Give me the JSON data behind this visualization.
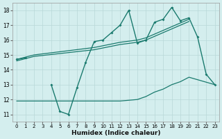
{
  "xlabel": "Humidex (Indice chaleur)",
  "background_color": "#d4eeee",
  "line_color": "#1a7a6e",
  "xlim": [
    -0.5,
    23.5
  ],
  "ylim": [
    10.5,
    18.5
  ],
  "xticks": [
    0,
    1,
    2,
    3,
    4,
    5,
    6,
    7,
    8,
    9,
    10,
    11,
    12,
    13,
    14,
    15,
    16,
    17,
    18,
    19,
    20,
    21,
    22,
    23
  ],
  "yticks": [
    11,
    12,
    13,
    14,
    15,
    16,
    17,
    18
  ],
  "grid_color": "#b8d8d8",
  "main_x": [
    0,
    1,
    2,
    3,
    4,
    5,
    6,
    7,
    8,
    9,
    10,
    11,
    12,
    13,
    14,
    15,
    16,
    17,
    18,
    19,
    20,
    21,
    22,
    23
  ],
  "main_y": [
    14.7,
    14.8,
    null,
    null,
    13.0,
    11.2,
    11.0,
    12.8,
    14.5,
    15.9,
    16.0,
    16.5,
    17.0,
    18.0,
    15.8,
    16.0,
    17.2,
    17.4,
    18.2,
    17.3,
    17.5,
    16.2,
    13.7,
    13.0
  ],
  "upper_trend_x": [
    0,
    2,
    9,
    12,
    14,
    15,
    16,
    17,
    18,
    19,
    20
  ],
  "upper_trend_y": [
    14.7,
    15.0,
    15.5,
    15.85,
    16.0,
    16.15,
    16.4,
    16.65,
    16.9,
    17.15,
    17.4
  ],
  "lower_trend_x": [
    0,
    2,
    9,
    12,
    14,
    15,
    16,
    17,
    18,
    19,
    20
  ],
  "lower_trend_y": [
    14.6,
    14.9,
    15.35,
    15.7,
    15.85,
    16.0,
    16.25,
    16.5,
    16.75,
    17.0,
    17.25
  ],
  "bottom_line_x": [
    0,
    2,
    9,
    12,
    14,
    15,
    16,
    17,
    18,
    19,
    20,
    23
  ],
  "bottom_line_y": [
    11.9,
    11.9,
    11.9,
    11.9,
    12.0,
    12.2,
    12.5,
    12.7,
    13.0,
    13.2,
    13.5,
    13.0
  ]
}
